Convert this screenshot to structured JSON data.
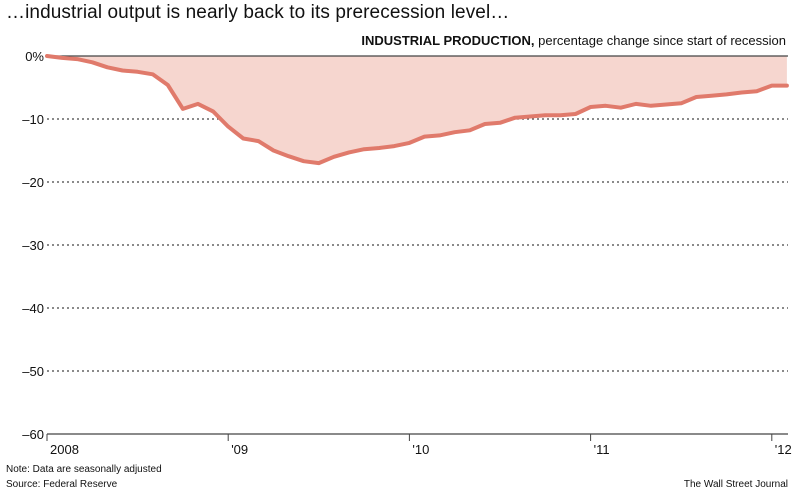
{
  "headline": "…industrial output is nearly back to its prerecession level…",
  "chart_title_bold": "INDUSTRIAL PRODUCTION,",
  "chart_title_rest": "percentage change since start of recession",
  "note": "Note: Data are seasonally adjusted",
  "source": "Source: Federal Reserve",
  "credit": "The Wall Street Journal",
  "colors": {
    "line": "#e07a6b",
    "fill": "#f6d6cf",
    "grid": "#444444",
    "zero_line": "#444444"
  },
  "chart_data": {
    "type": "area",
    "title": "INDUSTRIAL PRODUCTION, percentage change since start of recession",
    "xlabel": "",
    "ylabel": "",
    "ylim": [
      -60,
      0
    ],
    "y_ticks": [
      0,
      -10,
      -20,
      -30,
      -40,
      -50,
      -60
    ],
    "y_tick_labels": [
      "0%",
      "–10",
      "–20",
      "–30",
      "–40",
      "–50",
      "–60"
    ],
    "x_ticks": [
      {
        "label": "2008",
        "month_index": 0
      },
      {
        "label": "'09",
        "month_index": 12
      },
      {
        "label": "'10",
        "month_index": 24
      },
      {
        "label": "'11",
        "month_index": 36
      },
      {
        "label": "'12",
        "month_index": 48
      }
    ],
    "grid": true,
    "series": [
      {
        "month_index": [
          0,
          1,
          2,
          3,
          4,
          5,
          6,
          7,
          8,
          9,
          10,
          11,
          12,
          13,
          14,
          15,
          16,
          17,
          18,
          19,
          20,
          21,
          22,
          23,
          24,
          25,
          26,
          27,
          28,
          29,
          30,
          31,
          32,
          33,
          34,
          35,
          36,
          37,
          38,
          39,
          40,
          41,
          42,
          43,
          44,
          45,
          46,
          47,
          48,
          49
        ],
        "values": [
          0,
          -0.3,
          -0.5,
          -1.0,
          -1.8,
          -2.3,
          -2.5,
          -2.9,
          -4.6,
          -8.4,
          -7.6,
          -8.8,
          -11.2,
          -13.1,
          -13.5,
          -15.0,
          -15.9,
          -16.7,
          -17.0,
          -16.0,
          -15.3,
          -14.8,
          -14.6,
          -14.3,
          -13.8,
          -12.8,
          -12.6,
          -12.1,
          -11.8,
          -10.8,
          -10.6,
          -9.8,
          -9.6,
          -9.4,
          -9.4,
          -9.2,
          -8.1,
          -7.9,
          -8.2,
          -7.6,
          -7.9,
          -7.7,
          -7.5,
          -6.5,
          -6.3,
          -6.1,
          -5.8,
          -5.6,
          -4.7,
          -4.7
        ]
      }
    ]
  }
}
